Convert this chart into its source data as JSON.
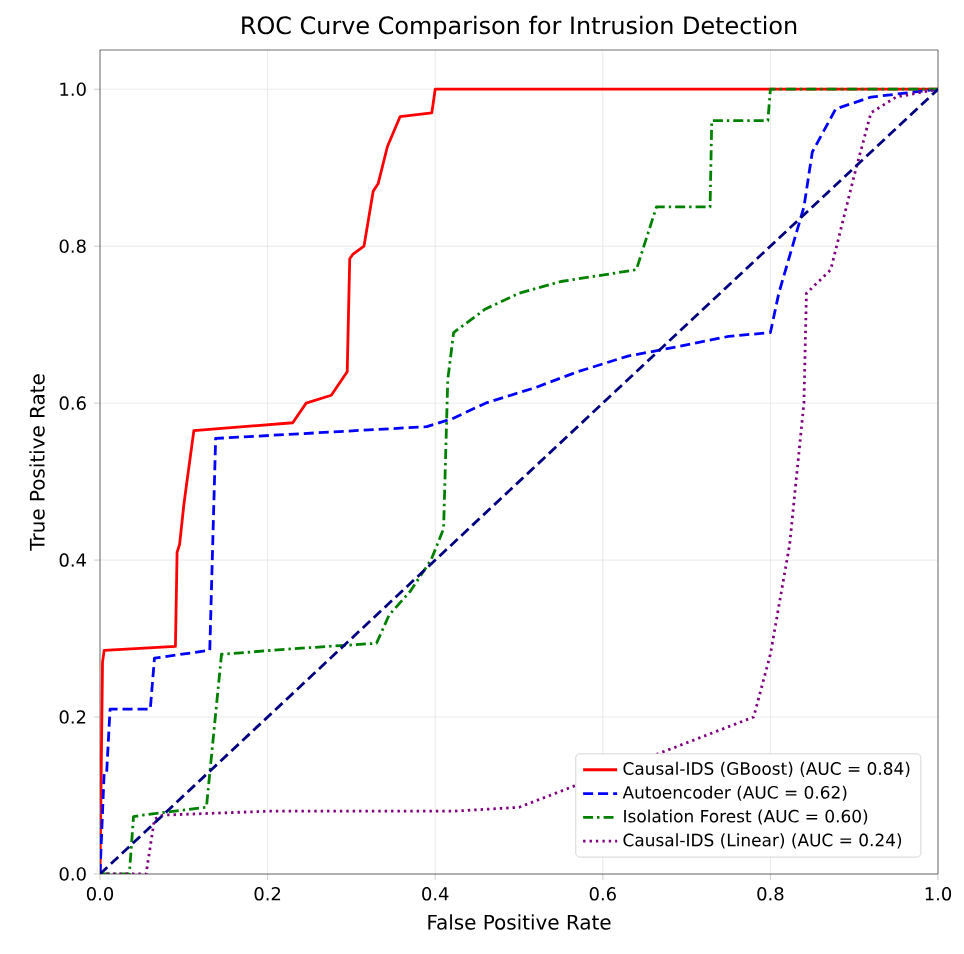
{
  "chart_data": {
    "type": "line",
    "title": "ROC Curve Comparison for Intrusion Detection",
    "xlabel": "False Positive Rate",
    "ylabel": "True Positive Rate",
    "xlim": [
      0,
      1
    ],
    "ylim": [
      0,
      1.05
    ],
    "xticks": [
      {
        "value": 0,
        "label": "0.0"
      },
      {
        "value": 0.2,
        "label": "0.2"
      },
      {
        "value": 0.4,
        "label": "0.4"
      },
      {
        "value": 0.6,
        "label": "0.6"
      },
      {
        "value": 0.8,
        "label": "0.8"
      },
      {
        "value": 1,
        "label": "1.0"
      }
    ],
    "yticks": [
      {
        "value": 0,
        "label": "0.0"
      },
      {
        "value": 0.2,
        "label": "0.2"
      },
      {
        "value": 0.4,
        "label": "0.4"
      },
      {
        "value": 0.6,
        "label": "0.6"
      },
      {
        "value": 0.8,
        "label": "0.8"
      },
      {
        "value": 1,
        "label": "1.0"
      }
    ],
    "grid": true,
    "legend": "bottom right",
    "series": [
      {
        "name": "Causal-IDS (GBoost) (AUC = 0.84)",
        "color": "#ff0000",
        "line_style": "solid",
        "x": [
          0,
          0.003,
          0.005,
          0.09,
          0.092,
          0.095,
          0.1,
          0.105,
          0.112,
          0.23,
          0.246,
          0.276,
          0.295,
          0.298,
          0.302,
          0.315,
          0.326,
          0.332,
          0.343,
          0.358,
          0.396,
          0.4,
          1.0
        ],
        "values": [
          0,
          0.27,
          0.285,
          0.29,
          0.41,
          0.42,
          0.47,
          0.51,
          0.565,
          0.575,
          0.6,
          0.61,
          0.64,
          0.784,
          0.79,
          0.8,
          0.87,
          0.88,
          0.927,
          0.965,
          0.97,
          1.0,
          1.0
        ]
      },
      {
        "name": "Autoencoder (AUC = 0.62)",
        "color": "#0000ff",
        "line_style": "dashed",
        "x": [
          0,
          0.005,
          0.008,
          0.012,
          0.06,
          0.065,
          0.13,
          0.131,
          0.138,
          0.39,
          0.42,
          0.46,
          0.52,
          0.57,
          0.63,
          0.68,
          0.75,
          0.8,
          0.81,
          0.84,
          0.85,
          0.878,
          0.92,
          1.0
        ],
        "values": [
          0,
          0.13,
          0.13,
          0.21,
          0.21,
          0.275,
          0.285,
          0.285,
          0.555,
          0.57,
          0.58,
          0.6,
          0.62,
          0.64,
          0.66,
          0.67,
          0.685,
          0.69,
          0.74,
          0.85,
          0.92,
          0.975,
          0.99,
          1.0
        ]
      },
      {
        "name": "Isolation Forest (AUC = 0.60)",
        "color": "#008000",
        "line_style": "dashdot",
        "x": [
          0,
          0.035,
          0.04,
          0.05,
          0.127,
          0.145,
          0.23,
          0.33,
          0.345,
          0.37,
          0.395,
          0.41,
          0.415,
          0.422,
          0.46,
          0.5,
          0.55,
          0.616,
          0.64,
          0.664,
          0.728,
          0.73,
          0.797,
          0.8,
          1.0
        ],
        "values": [
          0,
          0,
          0.073,
          0.075,
          0.085,
          0.28,
          0.287,
          0.294,
          0.33,
          0.36,
          0.4,
          0.44,
          0.63,
          0.69,
          0.72,
          0.74,
          0.755,
          0.766,
          0.77,
          0.85,
          0.85,
          0.96,
          0.96,
          1.0,
          1.0
        ]
      },
      {
        "name": "Causal-IDS (Linear) (AUC = 0.24)",
        "color": "#800080",
        "line_style": "dotted",
        "x": [
          0,
          0.055,
          0.065,
          0.075,
          0.2,
          0.42,
          0.5,
          0.652,
          0.7,
          0.78,
          0.8,
          0.823,
          0.84,
          0.843,
          0.872,
          0.9,
          0.92,
          0.95,
          1.0
        ],
        "values": [
          0,
          0,
          0.07,
          0.075,
          0.08,
          0.08,
          0.085,
          null,
          null,
          0.2,
          0.28,
          0.42,
          0.6,
          0.74,
          0.77,
          0.89,
          0.97,
          0.99,
          1.0
        ]
      },
      {
        "color": "#000080",
        "line_style": "dashed",
        "x": [
          0,
          1
        ],
        "values": [
          0,
          1
        ]
      }
    ]
  }
}
